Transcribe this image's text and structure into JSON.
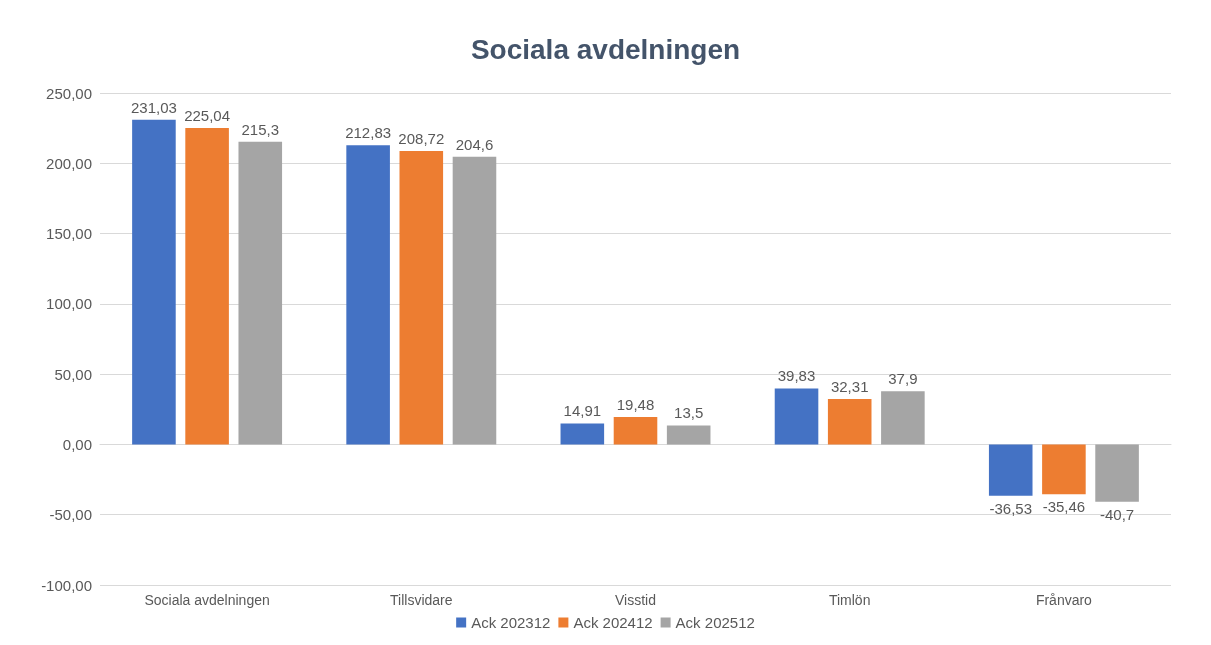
{
  "chart_data": {
    "type": "bar",
    "title": "Sociala avdelningen",
    "categories": [
      "Sociala avdelningen",
      "Tillsvidare",
      "Visstid",
      "Timlön",
      "Frånvaro"
    ],
    "series": [
      {
        "name": "Ack 202312",
        "color": "#4472c4",
        "values": [
          231.03,
          212.83,
          14.91,
          39.83,
          -36.53
        ],
        "value_labels": [
          "231,03",
          "212,83",
          "14,91",
          "39,83",
          "-36,53"
        ]
      },
      {
        "name": "Ack 202412",
        "color": "#ed7d31",
        "values": [
          225.04,
          208.72,
          19.48,
          32.31,
          -35.46
        ],
        "value_labels": [
          "225,04",
          "208,72",
          "19,48",
          "32,31",
          "-35,46"
        ]
      },
      {
        "name": "Ack 202512",
        "color": "#a5a5a5",
        "values": [
          215.3,
          204.6,
          13.5,
          37.9,
          -40.7
        ],
        "value_labels": [
          "215,3",
          "204,6",
          "13,5",
          "37,9",
          "-40,7"
        ]
      }
    ],
    "ylim": [
      -100,
      250
    ],
    "yticks": [
      {
        "value": -100,
        "label": "-100,00"
      },
      {
        "value": -50,
        "label": "-50,00"
      },
      {
        "value": 0,
        "label": "0,00"
      },
      {
        "value": 50,
        "label": "50,00"
      },
      {
        "value": 100,
        "label": "100,00"
      },
      {
        "value": 150,
        "label": "150,00"
      },
      {
        "value": 200,
        "label": "200,00"
      },
      {
        "value": 250,
        "label": "250,00"
      }
    ],
    "grid": "y",
    "legend": "bottom"
  }
}
